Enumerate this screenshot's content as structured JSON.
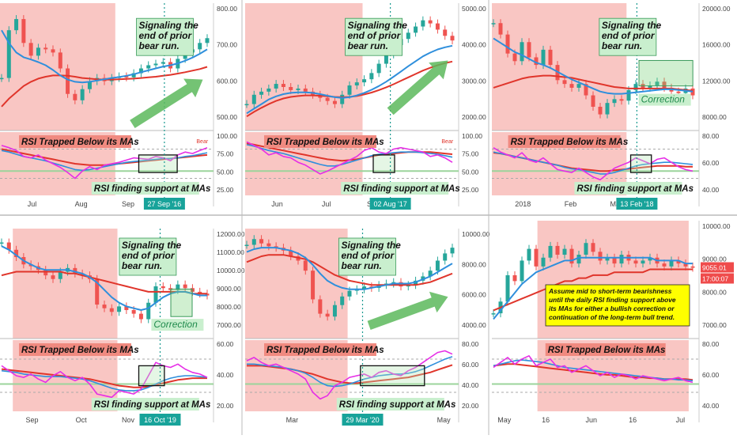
{
  "colors": {
    "bear_zone": "#f9c6c3",
    "ma_red": "#e0352b",
    "ma_blue": "#2f8fdc",
    "rsi": "#e62ee6",
    "arrow": "#5cb85c",
    "note_green": "#c9efce",
    "note_red": "#f08a80",
    "note_yellow": "#ffff00",
    "date_tag": "#18a39a",
    "price_tag": "#ef4b4b"
  },
  "chart_data": [
    {
      "type": "line",
      "panel": "top-left",
      "price_ticks": [
        "800.00",
        "700.00",
        "600.00",
        "500.00"
      ],
      "rsi_ticks": [
        "100.00",
        "75.00",
        "50.00",
        "25.00"
      ],
      "x_ticks": [
        "Jul",
        "Aug",
        "Sep"
      ],
      "date_tag": "27 Sep '16",
      "price_note": "Signaling the\nend of prior\nbear run.",
      "rsi_note_top": "RSI Trapped Below its MAs",
      "rsi_note_bottom": "RSI finding support at MAs",
      "rsi_mark": "Bear",
      "price_ylim": [
        460,
        830
      ],
      "price": [
        610,
        760,
        795,
        720,
        680,
        705,
        700,
        690,
        640,
        560,
        540,
        575,
        600,
        610,
        600,
        610,
        615,
        612,
        625,
        640,
        650,
        655,
        660,
        640,
        670,
        690,
        700,
        720,
        735
      ],
      "ma_blue": [
        760,
        720,
        690,
        675,
        668,
        660,
        650,
        635,
        618,
        605,
        598,
        596,
        598,
        602,
        606,
        610,
        613,
        617,
        622,
        628,
        634,
        640,
        646,
        650,
        656,
        664,
        674,
        686,
        700
      ],
      "ma_red": [
        520,
        545,
        565,
        585,
        598,
        608,
        614,
        618,
        618,
        617,
        614,
        610,
        608,
        606,
        605,
        605,
        606,
        607,
        608,
        610,
        612,
        614,
        617,
        620,
        624,
        628,
        633,
        638,
        645
      ],
      "rsi": [
        75,
        72,
        68,
        60,
        58,
        62,
        55,
        50,
        45,
        38,
        30,
        40,
        46,
        42,
        48,
        50,
        52,
        55,
        58,
        57,
        56,
        60,
        58,
        54,
        62,
        66,
        64,
        68,
        72
      ],
      "rsi_ma_red": [
        70,
        68,
        66,
        64,
        62,
        60,
        58,
        56,
        54,
        52,
        50,
        49,
        48,
        48,
        48,
        49,
        50,
        51,
        52,
        53,
        54,
        55,
        56,
        57,
        58,
        59,
        60,
        61,
        62
      ],
      "rsi_ma_blue": [
        68,
        66,
        63,
        60,
        58,
        56,
        54,
        51,
        48,
        45,
        42,
        41,
        42,
        44,
        46,
        48,
        50,
        52,
        53,
        54,
        55,
        56,
        57,
        57,
        58,
        60,
        61,
        63,
        65
      ]
    },
    {
      "type": "line",
      "panel": "top-middle",
      "price_ticks": [
        "5000.00",
        "4000.00",
        "3000.00",
        "2000.00"
      ],
      "rsi_ticks": [
        "100.00",
        "75.00",
        "50.00",
        "25.00"
      ],
      "x_ticks": [
        "Jun",
        "Jul",
        "Sep"
      ],
      "date_tag": "02 Aug '17",
      "price_note": "Signaling the\nend of prior\nbear run.",
      "rsi_note_top": "RSI Trapped Below its MAs",
      "rsi_note_bottom": "RSI finding support at MAs",
      "rsi_mark": "Bear",
      "price_ylim": [
        1500,
        5300
      ],
      "price": [
        2200,
        2500,
        2600,
        2700,
        2850,
        2750,
        2650,
        2700,
        2600,
        2500,
        2400,
        2300,
        2200,
        2500,
        2800,
        2900,
        3000,
        3200,
        3500,
        3800,
        4100,
        4300,
        4500,
        4700,
        4900,
        4800,
        4600,
        4400,
        4250
      ],
      "ma_blue": [
        1900,
        2050,
        2200,
        2350,
        2450,
        2520,
        2560,
        2580,
        2580,
        2560,
        2520,
        2470,
        2420,
        2400,
        2420,
        2480,
        2560,
        2660,
        2780,
        2920,
        3080,
        3250,
        3420,
        3580,
        3740,
        3860,
        3960,
        4030,
        4080
      ],
      "ma_red": [
        1800,
        1950,
        2080,
        2200,
        2300,
        2380,
        2430,
        2460,
        2480,
        2480,
        2470,
        2450,
        2430,
        2420,
        2430,
        2460,
        2510,
        2570,
        2650,
        2740,
        2840,
        2950,
        3060,
        3170,
        3280,
        3370,
        3450,
        3520,
        3570
      ],
      "rsi": [
        80,
        75,
        70,
        62,
        65,
        60,
        58,
        52,
        48,
        42,
        36,
        40,
        45,
        50,
        55,
        60,
        68,
        72,
        66,
        64,
        70,
        72,
        70,
        68,
        66,
        60,
        62,
        58,
        52
      ],
      "rsi_ma_red": [
        78,
        76,
        74,
        72,
        70,
        68,
        66,
        64,
        62,
        60,
        58,
        56,
        55,
        54,
        55,
        56,
        58,
        60,
        62,
        63,
        64,
        65,
        66,
        66,
        66,
        66,
        65,
        64,
        63
      ],
      "rsi_ma_blue": [
        76,
        74,
        71,
        68,
        66,
        64,
        61,
        58,
        55,
        52,
        49,
        47,
        47,
        49,
        52,
        55,
        58,
        61,
        63,
        64,
        65,
        66,
        66,
        66,
        65,
        64,
        63,
        61,
        59
      ]
    },
    {
      "type": "line",
      "panel": "top-right",
      "price_ticks": [
        "20000.00",
        "16000.00",
        "12000.00",
        "8000.00"
      ],
      "rsi_ticks": [
        "80.00",
        "60.00",
        "40.00"
      ],
      "x_ticks": [
        "2018",
        "Feb",
        "Mar"
      ],
      "date_tag": "13 Feb '18",
      "price_note": "Signaling the\nend of prior\nbear run.",
      "price_note_2": "Correction",
      "rsi_note_top": "RSI Trapped Below its MAs",
      "rsi_note_bottom": "RSI finding support at MAs",
      "price_ylim": [
        5500,
        21000
      ],
      "price": [
        19000,
        17500,
        15000,
        14000,
        16500,
        14500,
        13500,
        15500,
        13500,
        11500,
        11000,
        10500,
        11000,
        9500,
        8000,
        7000,
        8500,
        9000,
        8800,
        10200,
        11000,
        10500,
        10800,
        11300,
        10500,
        10000,
        9800,
        10400,
        9500
      ],
      "ma_blue": [
        17000,
        16400,
        15800,
        15200,
        14800,
        14300,
        13800,
        13500,
        13100,
        12600,
        12100,
        11600,
        11200,
        10800,
        10400,
        10000,
        9800,
        9700,
        9700,
        9800,
        9900,
        10000,
        10100,
        10200,
        10300,
        10300,
        10200,
        10100,
        10000
      ],
      "ma_red": [
        10500,
        10800,
        11100,
        11400,
        11700,
        11900,
        12000,
        12100,
        12100,
        12000,
        11900,
        11800,
        11600,
        11400,
        11200,
        11000,
        10800,
        10600,
        10500,
        10400,
        10400,
        10400,
        10400,
        10400,
        10400,
        10400,
        10300,
        10200,
        10100
      ],
      "rsi": [
        72,
        66,
        62,
        58,
        65,
        55,
        52,
        58,
        50,
        42,
        40,
        38,
        44,
        38,
        32,
        28,
        36,
        44,
        48,
        52,
        58,
        54,
        50,
        56,
        58,
        52,
        46,
        42,
        40
      ],
      "rsi_ma_red": [
        65,
        64,
        62,
        60,
        58,
        56,
        54,
        52,
        50,
        48,
        46,
        44,
        43,
        42,
        41,
        40,
        40,
        41,
        42,
        43,
        44,
        45,
        46,
        47,
        47,
        47,
        47,
        46,
        46
      ],
      "rsi_ma_blue": [
        66,
        64,
        62,
        60,
        58,
        56,
        54,
        52,
        50,
        48,
        45,
        43,
        42,
        40,
        38,
        36,
        36,
        38,
        41,
        44,
        47,
        49,
        50,
        51,
        52,
        52,
        51,
        50,
        49
      ]
    },
    {
      "type": "line",
      "panel": "bottom-left",
      "price_ticks": [
        "12000.00",
        "11000.00",
        "10000.00",
        "9000.00",
        "8000.00",
        "7000.00"
      ],
      "rsi_ticks": [
        "60.00",
        "40.00",
        "20.00"
      ],
      "x_ticks": [
        "Sep",
        "Oct",
        "Nov"
      ],
      "date_tag": "16 Oct '19",
      "price_note": "Signaling the\nend of prior\nbear run.",
      "price_note_2": "Correction",
      "rsi_note_top": "RSI Trapped Below its MAs",
      "rsi_note_bottom": "RSI finding support at MAs",
      "price_ylim": [
        6800,
        12300
      ],
      "price": [
        11800,
        11400,
        11000,
        10600,
        10500,
        10300,
        10000,
        9800,
        10200,
        10400,
        10100,
        10000,
        9800,
        8400,
        8200,
        8000,
        8300,
        8100,
        7900,
        7600,
        8500,
        9400,
        9300,
        9200,
        9500,
        9300,
        9100,
        9000,
        8900
      ],
      "ma_blue": [
        11600,
        11400,
        11100,
        10800,
        10600,
        10400,
        10300,
        10300,
        10300,
        10300,
        10200,
        10100,
        9900,
        9600,
        9200,
        8800,
        8500,
        8300,
        8200,
        8100,
        8200,
        8500,
        8800,
        9000,
        9100,
        9100,
        9000,
        8900,
        8900
      ],
      "ma_red": [
        10000,
        10100,
        10200,
        10200,
        10200,
        10200,
        10200,
        10200,
        10200,
        10100,
        10100,
        10000,
        9900,
        9800,
        9700,
        9600,
        9500,
        9400,
        9300,
        9200,
        9100,
        9100,
        9100,
        9100,
        9100,
        9100,
        9000,
        9000,
        9000
      ],
      "rsi": [
        62,
        56,
        50,
        48,
        52,
        46,
        42,
        50,
        55,
        48,
        44,
        48,
        40,
        28,
        26,
        24,
        32,
        30,
        28,
        34,
        50,
        66,
        62,
        60,
        64,
        58,
        54,
        52,
        48
      ],
      "rsi_ma_red": [
        58,
        57,
        56,
        55,
        54,
        53,
        52,
        51,
        50,
        49,
        48,
        47,
        46,
        44,
        42,
        40,
        38,
        37,
        36,
        36,
        37,
        39,
        41,
        43,
        45,
        46,
        47,
        47,
        47
      ],
      "rsi_ma_blue": [
        56,
        55,
        54,
        52,
        51,
        50,
        49,
        49,
        49,
        48,
        47,
        46,
        44,
        41,
        38,
        35,
        33,
        32,
        32,
        33,
        36,
        40,
        44,
        47,
        49,
        50,
        50,
        49,
        48
      ]
    },
    {
      "type": "line",
      "panel": "bottom-middle",
      "price_ticks": [
        "10000.00",
        "8000.00",
        "6000.00",
        "4000.00"
      ],
      "rsi_ticks": [
        "80.00",
        "60.00",
        "40.00",
        "20.00"
      ],
      "x_ticks": [
        "Mar",
        "May"
      ],
      "date_tag": "29 Mar '20",
      "price_note": "Signaling the\nend of prior\nbear run.",
      "rsi_note_top": "RSI Trapped Below its MAs",
      "rsi_note_bottom": "RSI finding support at MAs",
      "price_ylim": [
        3600,
        10600
      ],
      "price": [
        9800,
        10200,
        9900,
        9700,
        9600,
        9400,
        9000,
        8700,
        8000,
        6000,
        5000,
        4800,
        5600,
        6200,
        6600,
        6700,
        6900,
        6800,
        7000,
        7100,
        7200,
        6900,
        7000,
        7300,
        7600,
        8000,
        8700,
        9200,
        9600
      ],
      "ma_blue": [
        9300,
        9500,
        9600,
        9600,
        9600,
        9500,
        9400,
        9200,
        8900,
        8400,
        7800,
        7300,
        7000,
        6800,
        6700,
        6700,
        6700,
        6800,
        6900,
        7000,
        7100,
        7100,
        7100,
        7200,
        7400,
        7600,
        7900,
        8200,
        8500
      ],
      "ma_red": [
        8600,
        8800,
        9000,
        9100,
        9100,
        9100,
        9000,
        8900,
        8800,
        8600,
        8300,
        8000,
        7700,
        7500,
        7300,
        7200,
        7100,
        7000,
        7000,
        7000,
        7000,
        7000,
        7000,
        7000,
        7100,
        7200,
        7400,
        7600,
        7800
      ],
      "rsi": [
        68,
        72,
        66,
        62,
        64,
        60,
        56,
        52,
        46,
        30,
        22,
        26,
        38,
        42,
        48,
        50,
        52,
        48,
        54,
        56,
        52,
        50,
        56,
        60,
        66,
        72,
        78,
        80,
        76
      ],
      "rsi_ma_red": [
        62,
        62,
        62,
        61,
        60,
        59,
        58,
        56,
        54,
        52,
        49,
        46,
        44,
        42,
        41,
        41,
        42,
        43,
        44,
        45,
        46,
        47,
        48,
        50,
        52,
        54,
        57,
        60,
        63
      ],
      "rsi_ma_blue": [
        64,
        64,
        63,
        62,
        61,
        60,
        58,
        56,
        53,
        48,
        42,
        38,
        37,
        38,
        40,
        43,
        46,
        48,
        50,
        51,
        52,
        52,
        53,
        55,
        58,
        62,
        66,
        70,
        73
      ]
    },
    {
      "type": "line",
      "panel": "bottom-right",
      "price_ticks": [
        "10000.00",
        "9000.00",
        "8000.00",
        "7000.00"
      ],
      "price_tag": "9055.01",
      "time_tag": "17:00:07",
      "rsi_ticks": [
        "80.00",
        "60.00",
        "40.00"
      ],
      "x_ticks": [
        "May",
        "16",
        "Jun",
        "16",
        "Jul"
      ],
      "price_note": "Assume mid to short-term bearishness\nuntil the daily RSI finding support above\nits MAs for either a bullish correction or\ncontinuation of the long-term bull trend.",
      "rsi_note_top": "RSI Trapped Below its MAs",
      "price_ylim": [
        6800,
        10500
      ],
      "price": [
        7500,
        7900,
        8800,
        8600,
        9300,
        9700,
        9100,
        9400,
        9800,
        9500,
        9700,
        9200,
        9500,
        9900,
        9600,
        9300,
        9400,
        9200,
        9500,
        9300,
        9200,
        9300,
        9400,
        9200,
        9100,
        9300,
        9200,
        9100,
        9055
      ],
      "ma_blue": [
        7300,
        7600,
        7900,
        8200,
        8500,
        8700,
        8900,
        9000,
        9100,
        9200,
        9300,
        9300,
        9400,
        9400,
        9400,
        9400,
        9400,
        9400,
        9400,
        9400,
        9400,
        9400,
        9400,
        9300,
        9300,
        9300,
        9300,
        9200,
        9200
      ],
      "ma_red": [
        7600,
        7700,
        7800,
        7900,
        8000,
        8100,
        8200,
        8300,
        8400,
        8500,
        8600,
        8600,
        8700,
        8700,
        8800,
        8800,
        8800,
        8900,
        8900,
        8900,
        8900,
        8900,
        9000,
        9000,
        9000,
        9000,
        9000,
        9000,
        9000
      ],
      "rsi": [
        60,
        66,
        72,
        64,
        70,
        74,
        62,
        66,
        70,
        60,
        62,
        54,
        58,
        62,
        56,
        50,
        54,
        48,
        52,
        50,
        46,
        50,
        48,
        46,
        44,
        46,
        48,
        44,
        42
      ],
      "rsi_ma_red": [
        62,
        63,
        64,
        64,
        63,
        62,
        61,
        60,
        59,
        58,
        57,
        56,
        55,
        54,
        53,
        52,
        51,
        51,
        50,
        49,
        48,
        48,
        47,
        47,
        46,
        46,
        46,
        46,
        45
      ],
      "rsi_ma_blue": [
        62,
        64,
        66,
        68,
        69,
        68,
        67,
        66,
        64,
        62,
        60,
        59,
        58,
        57,
        56,
        55,
        54,
        53,
        52,
        51,
        50,
        49,
        48,
        47,
        46,
        46,
        45,
        45,
        44
      ]
    }
  ]
}
